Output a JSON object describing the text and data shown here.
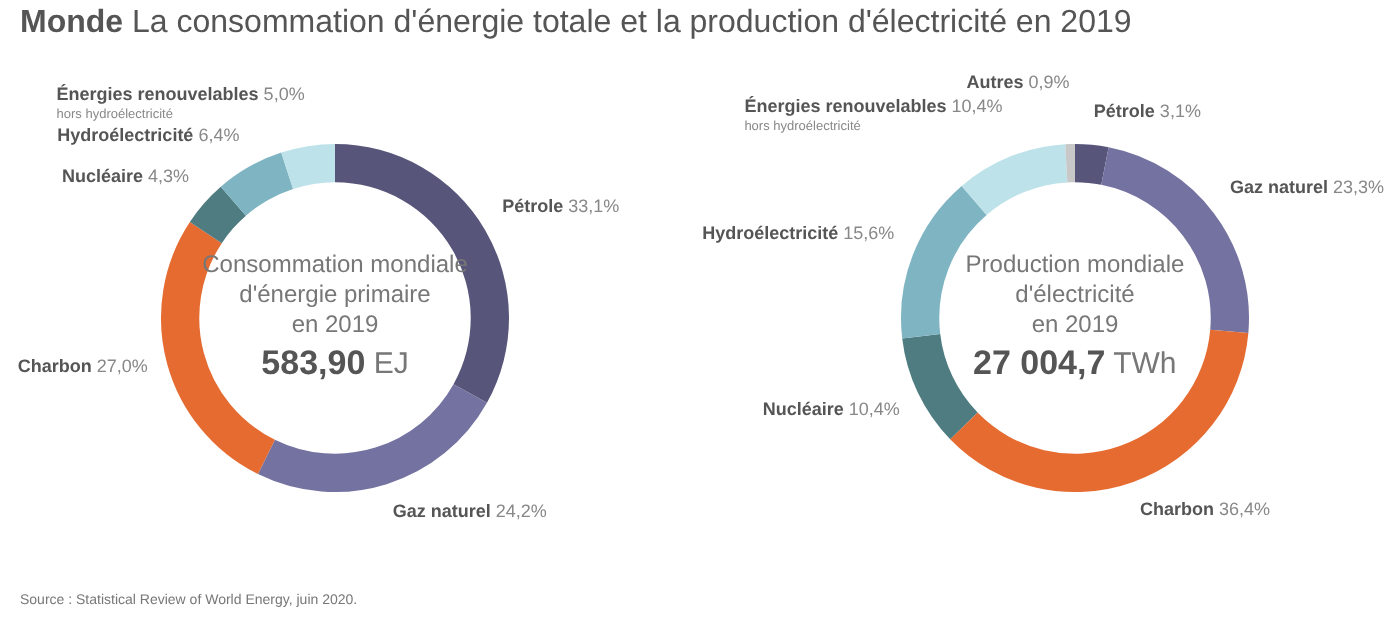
{
  "chart_data": [
    {
      "type": "donut",
      "title": "Monde",
      "subtitle": "La consommation d'énergie totale et la production d'électricité en 2019",
      "categories": [
        "Pétrole",
        "Gaz naturel",
        "Charbon",
        "Nucléaire",
        "Hydroélectricité",
        "Énergies renouvelables\nhors hydroélectricité"
      ],
      "values": [
        33.1,
        24.2,
        27.0,
        4.3,
        6.4,
        5.0
      ],
      "value_labels": [
        "33,1%",
        "24,2%",
        "27,0%",
        "4,3%",
        "6,4%",
        "5,0%"
      ],
      "colors": [
        "#575579",
        "#7472a0",
        "#e56b31",
        "#4f7c80",
        "#7fb5c3",
        "#bde2e9"
      ],
      "annotations": [
        "Consommation mondiale\nd'énergie primaire\nen 2019",
        "583,90 EJ"
      ]
    },
    {
      "type": "donut",
      "categories": [
        "Pétrole",
        "Gaz naturel",
        "Charbon",
        "Nucléaire",
        "Hydroélectricité",
        "Énergies renouvelables\nhors hydroélectricité",
        "Autres"
      ],
      "values": [
        3.1,
        23.3,
        36.4,
        10.4,
        15.6,
        10.4,
        0.9
      ],
      "value_labels": [
        "3,1%",
        "23,3%",
        "36,4%",
        "10,4%",
        "15,6%",
        "10,4%",
        "0,9%"
      ],
      "colors": [
        "#575579",
        "#7472a0",
        "#e56b31",
        "#4f7c80",
        "#7fb5c3",
        "#bde2e9",
        "#c8c8c8"
      ],
      "annotations": [
        "Production mondiale\nd'électricité\nen 2019",
        "27 004,7 TWh",
        "Source : Statistical Review of World Energy, juin 2020."
      ]
    }
  ]
}
